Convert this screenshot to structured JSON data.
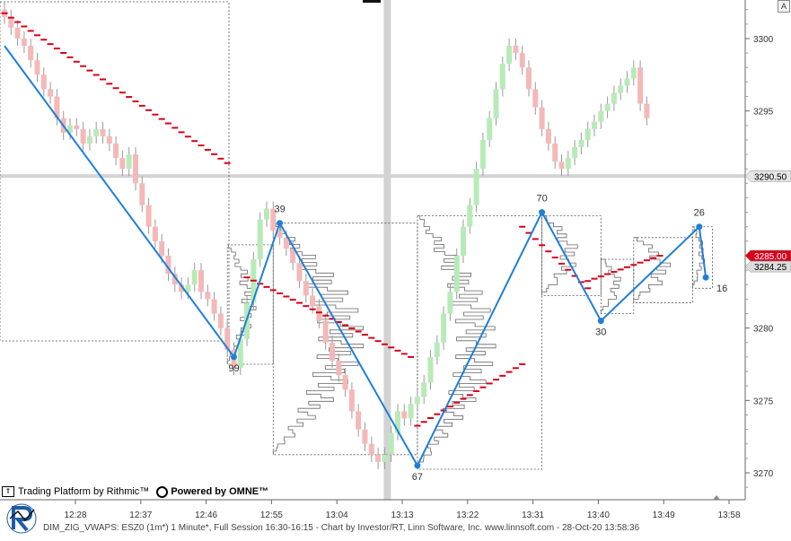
{
  "chart_data": {
    "type": "candlestick",
    "symbol": "ESZ0",
    "interval": "1m",
    "y_axis": {
      "min": 3266,
      "max": 3304,
      "tick_labels": [
        "3300",
        "3295",
        "3290.50",
        "3285.00",
        "3284.25",
        "3280",
        "3275",
        "3270"
      ],
      "ticks": [
        3300,
        3295,
        3280,
        3275,
        3270
      ]
    },
    "x_axis": {
      "tick_labels": [
        "12:28",
        "12:37",
        "12:46",
        "12:55",
        "13:04",
        "13:13",
        "13:22",
        "13:31",
        "13:40",
        "13:49",
        "13:58"
      ]
    },
    "price_tags": [
      {
        "label": "3290.50",
        "value": 3290.5,
        "background": "#e6e6e6",
        "color": "#000000"
      },
      {
        "label": "3285.00",
        "value": 3285.0,
        "background": "#d9001b",
        "color": "#ffffff"
      },
      {
        "label": "3284.25",
        "value": 3284.25,
        "background": "#dddddd",
        "color": "#000000"
      }
    ],
    "crosshair": {
      "price": 3290.5,
      "bar_index": 58
    },
    "candles_start": 3302,
    "candle_moves": [
      -0.5,
      -0.75,
      -0.75,
      -0.5,
      -1,
      -1,
      -1,
      -0.5,
      -1.5,
      -1,
      0.5,
      -0.25,
      -1,
      0.5,
      0.5,
      -0.5,
      -0.5,
      -1,
      -0.75,
      1,
      -2,
      -1.5,
      -1.5,
      -1,
      -1,
      -1.25,
      -0.75,
      -0.5,
      0.5,
      1,
      -1.5,
      -0.5,
      -1,
      -1,
      -1.5,
      -1.25,
      2,
      2.5,
      3,
      2.75,
      0.75,
      -1.5,
      -0.5,
      -0.75,
      -1,
      -1.25,
      -1,
      -0.75,
      -1,
      -1.5,
      -1.25,
      -1,
      -1,
      -1.5,
      -1.25,
      -1,
      -0.75,
      -0.5,
      0.5,
      1.5,
      1.5,
      -0.5,
      1,
      0.5,
      1,
      1.75,
      1,
      2,
      1.5,
      2.5,
      2,
      1.5,
      2.5,
      2,
      1.5,
      2,
      1.75,
      1.25,
      -0.5,
      -1,
      -1.5,
      -1.25,
      -1.5,
      -1,
      -1.25,
      -0.5,
      0.75,
      0.75,
      0.5,
      0.75,
      0.5,
      0.75,
      0.5,
      0.75,
      0.5,
      0.5,
      0.75,
      -2.5,
      -1
    ],
    "vwap_start": 3301.75,
    "vwap_drift": [
      -0.3,
      -0.32,
      -0.34,
      -0.35,
      -0.36,
      -0.37,
      -0.38,
      -0.4,
      -0.4,
      -0.4,
      -0.39,
      -0.38,
      -0.38,
      -0.37,
      -0.36,
      -0.34,
      -0.33,
      -0.31,
      -0.3,
      -0.28,
      -0.27,
      -0.25,
      -0.23,
      -0.2,
      -0.18,
      -0.15,
      -0.13,
      -0.1,
      -0.05
    ],
    "vwap_segments": [
      {
        "start_bar": 0,
        "end_bar": 34,
        "start_value": 3301.75,
        "end_value": 3291.4
      },
      {
        "start_bar": 37,
        "end_bar": 62,
        "start_value": 3283.5,
        "end_value": 3278
      },
      {
        "start_bar": 63,
        "end_bar": 79,
        "start_value": 3273.25,
        "end_value": 3277.5
      },
      {
        "start_bar": 79,
        "end_bar": 89,
        "start_value": 3287,
        "end_value": 3282.75
      },
      {
        "start_bar": 89,
        "end_bar": 100,
        "start_value": 3283.25,
        "end_value": 3285
      }
    ],
    "zigzag_series": [
      {
        "bar": 0,
        "price": 3299.5,
        "label": ""
      },
      {
        "bar": 35,
        "price": 3278,
        "label": "99"
      },
      {
        "bar": 42,
        "price": 3287.25,
        "label": "39"
      },
      {
        "bar": 63,
        "price": 3270.5,
        "label": "67"
      },
      {
        "bar": 82,
        "price": 3288,
        "label": "70"
      },
      {
        "bar": 91,
        "price": 3280.5,
        "label": "30"
      },
      {
        "bar": 106,
        "price": 3287,
        "label": "26"
      },
      {
        "bar": 107,
        "price": 3283.5,
        "label": "16"
      }
    ],
    "volume_profiles": [
      {
        "start_bar": 34,
        "end_bar": 41,
        "high": 3285.75,
        "low": 3277.5
      },
      {
        "start_bar": 41,
        "end_bar": 63,
        "high": 3287.25,
        "low": 3271.25
      },
      {
        "start_bar": 63,
        "end_bar": 82,
        "high": 3287.75,
        "low": 3270.25
      },
      {
        "start_bar": 82,
        "end_bar": 91,
        "high": 3287.75,
        "low": 3282.25
      },
      {
        "start_bar": 91,
        "end_bar": 96,
        "high": 3284.75,
        "low": 3281
      },
      {
        "start_bar": 96,
        "end_bar": 105,
        "high": 3286.25,
        "low": 3281.75
      },
      {
        "start_bar": 105,
        "end_bar": 108,
        "high": 3287,
        "low": 3282.75
      }
    ],
    "colors": {
      "up_candle": "#b8eab8",
      "down_candle": "#f4b8b8",
      "vwap": "#d9001b",
      "zigzag": "#1e7fd8",
      "crosshair": "#d3d3d3",
      "profile": "#666666"
    }
  },
  "branding": {
    "platform_label": "Trading Platform by Rithmic™",
    "powered_label": "Powered by OMNE™"
  },
  "status_text": "DIM_ZIG_VWAPS: ESZ0 (1m*) 1 Minute*, Full Session 16:30-16:15 - Chart by Investor/RT, Linn Software, Inc. www.linnsoft.com - 28-Oct-20 13:58:36",
  "corner_button": "A"
}
